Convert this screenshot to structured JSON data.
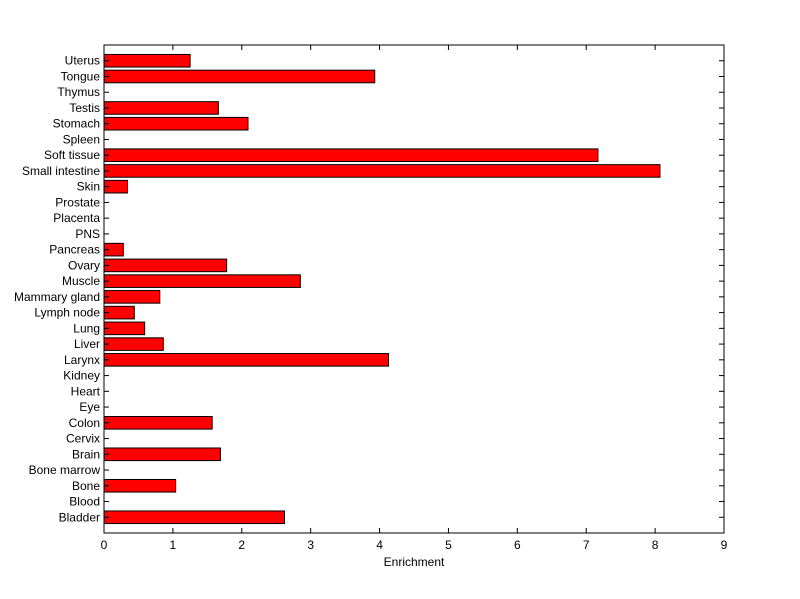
{
  "chart_data": {
    "type": "bar",
    "orientation": "horizontal",
    "title": "",
    "xlabel": "Enrichment",
    "ylabel": "",
    "xlim": [
      0,
      9
    ],
    "xticks": [
      "0",
      "1",
      "2",
      "3",
      "4",
      "5",
      "6",
      "7",
      "8",
      "9"
    ],
    "grid": false,
    "legend": "none",
    "bar_color": "#ff0000",
    "categories": [
      "Bladder",
      "Blood",
      "Bone",
      "Bone marrow",
      "Brain",
      "Cervix",
      "Colon",
      "Eye",
      "Heart",
      "Kidney",
      "Larynx",
      "Liver",
      "Lung",
      "Lymph node",
      "Mammary gland",
      "Muscle",
      "Ovary",
      "Pancreas",
      "PNS",
      "Placenta",
      "Prostate",
      "Skin",
      "Small intestine",
      "Soft tissue",
      "Spleen",
      "Stomach",
      "Testis",
      "Thymus",
      "Tongue",
      "Uterus"
    ],
    "values": [
      2.62,
      0,
      1.04,
      0,
      1.69,
      0,
      1.57,
      0,
      0,
      0,
      4.13,
      0.86,
      0.59,
      0.44,
      0.81,
      2.85,
      1.78,
      0.28,
      0,
      0,
      0,
      0.34,
      8.07,
      7.17,
      0,
      2.09,
      1.66,
      0,
      3.93,
      1.25
    ]
  }
}
